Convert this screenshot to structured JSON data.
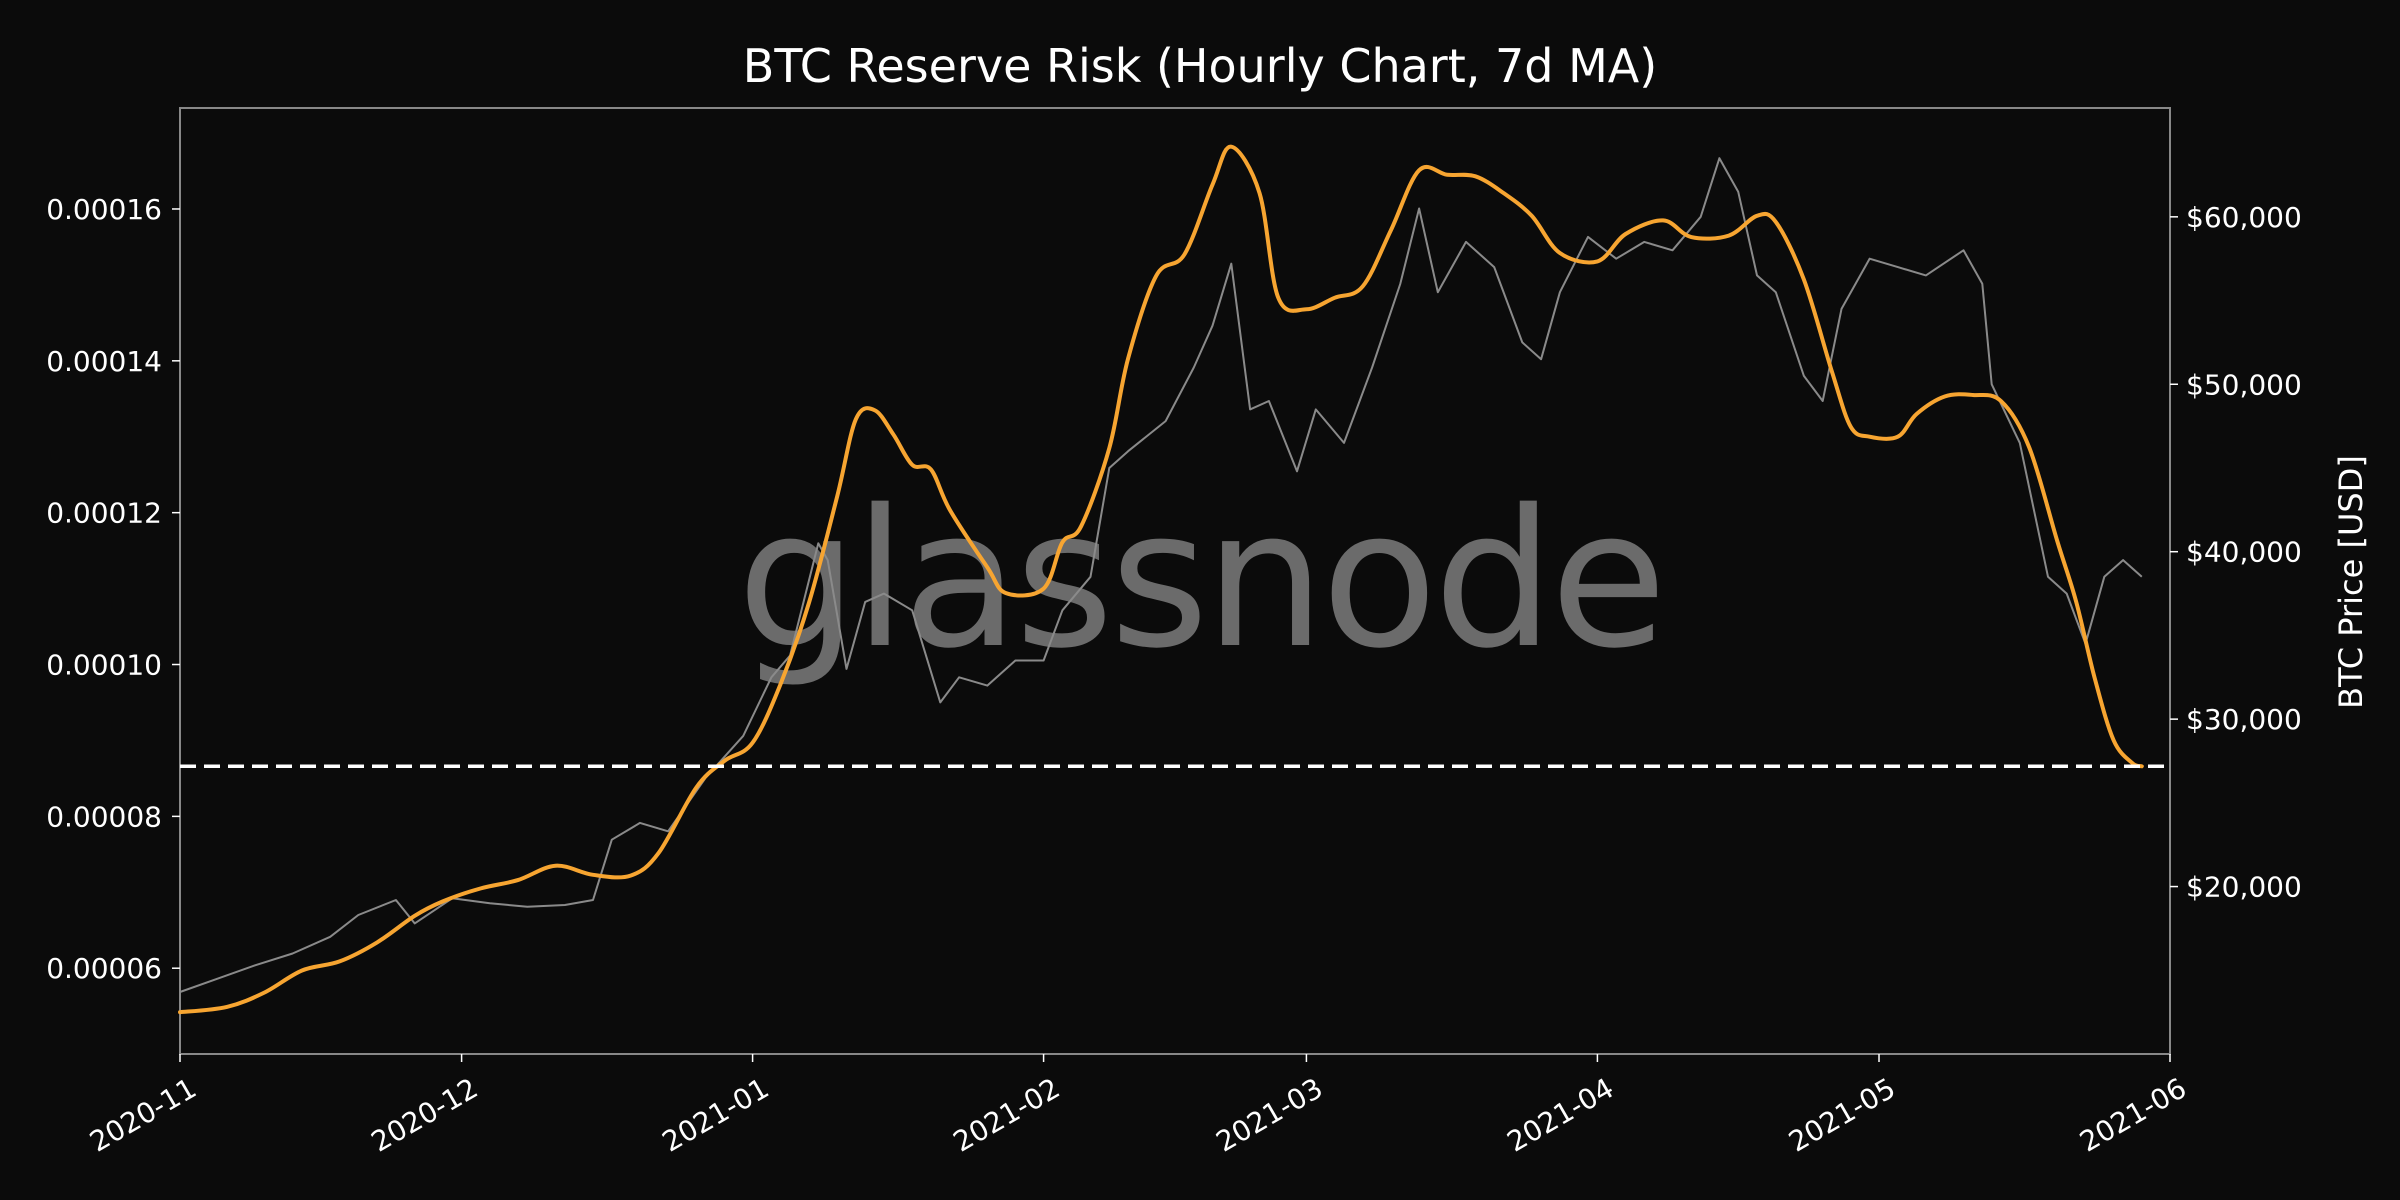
{
  "chart_data": {
    "type": "line",
    "title": "BTC Reserve Risk (Hourly Chart, 7d MA)",
    "watermark": "glassnode",
    "xlabel": "",
    "ylabel_left": "",
    "ylabel_right": "BTC Price [USD]",
    "x_ticks": [
      "2020-11",
      "2020-12",
      "2021-01",
      "2021-02",
      "2021-03",
      "2021-04",
      "2021-05",
      "2021-06"
    ],
    "y_left_ticks": [
      6e-05,
      8e-05,
      0.0001,
      0.00012,
      0.00014,
      0.00016
    ],
    "y_left_tick_labels": [
      "0.00006",
      "0.00008",
      "0.00010",
      "0.00012",
      "0.00014",
      "0.00016"
    ],
    "y_right_ticks": [
      20000,
      30000,
      40000,
      50000,
      60000
    ],
    "y_right_tick_labels": [
      "$20,000",
      "$30,000",
      "$40,000",
      "$50,000",
      "$60,000"
    ],
    "x_range": [
      "2020-11-01",
      "2021-06-01"
    ],
    "y_left_range": [
      4.87e-05,
      0.0001733
    ],
    "y_right_range": [
      10000,
      66500
    ],
    "grid": false,
    "legend": "none",
    "colors": {
      "background": "#0b0b0b",
      "reserve_risk": "#f7a531",
      "price": "#8a8a8a",
      "threshold": "#ffffff",
      "frame": "#888888"
    },
    "threshold": {
      "value": 8.66e-05,
      "style": "dashed"
    },
    "series": [
      {
        "axis": "left",
        "values": [
          [
            "2020-11-01",
            5.42e-05
          ],
          [
            "2020-11-06",
            5.49e-05
          ],
          [
            "2020-11-10",
            5.68e-05
          ],
          [
            "2020-11-14",
            5.97e-05
          ],
          [
            "2020-11-18",
            6.09e-05
          ],
          [
            "2020-11-22",
            6.34e-05
          ],
          [
            "2020-11-26",
            6.69e-05
          ],
          [
            "2020-11-29",
            6.88e-05
          ],
          [
            "2020-12-03",
            7.05e-05
          ],
          [
            "2020-12-07",
            7.16e-05
          ],
          [
            "2020-12-11",
            7.35e-05
          ],
          [
            "2020-12-15",
            7.23e-05
          ],
          [
            "2020-12-19",
            7.22e-05
          ],
          [
            "2020-12-22",
            7.52e-05
          ],
          [
            "2020-12-26",
            8.38e-05
          ],
          [
            "2020-12-29",
            8.73e-05
          ],
          [
            "2021-01-01",
            8.97e-05
          ],
          [
            "2021-01-04",
            9.75e-05
          ],
          [
            "2021-01-07",
            0.0001081
          ],
          [
            "2021-01-10",
            0.0001221
          ],
          [
            "2021-01-12",
            0.0001323
          ],
          [
            "2021-01-14",
            0.0001335
          ],
          [
            "2021-01-16",
            0.0001303
          ],
          [
            "2021-01-18",
            0.0001263
          ],
          [
            "2021-01-20",
            0.0001257
          ],
          [
            "2021-01-22",
            0.0001204
          ],
          [
            "2021-01-26",
            0.0001128
          ],
          [
            "2021-01-28",
            0.0001094
          ],
          [
            "2021-02-01",
            0.00011
          ],
          [
            "2021-02-03",
            0.0001161
          ],
          [
            "2021-02-05",
            0.0001182
          ],
          [
            "2021-02-08",
            0.0001285
          ],
          [
            "2021-02-10",
            0.0001403
          ],
          [
            "2021-02-13",
            0.0001512
          ],
          [
            "2021-02-16",
            0.000154
          ],
          [
            "2021-02-19",
            0.0001632
          ],
          [
            "2021-02-21",
            0.0001682
          ],
          [
            "2021-02-24",
            0.0001621
          ],
          [
            "2021-02-26",
            0.0001483
          ],
          [
            "2021-03-01",
            0.0001468
          ],
          [
            "2021-03-04",
            0.0001483
          ],
          [
            "2021-03-07",
            0.0001498
          ],
          [
            "2021-03-10",
            0.0001572
          ],
          [
            "2021-03-13",
            0.0001651
          ],
          [
            "2021-03-16",
            0.0001645
          ],
          [
            "2021-03-19",
            0.0001643
          ],
          [
            "2021-03-22",
            0.0001621
          ],
          [
            "2021-03-25",
            0.0001591
          ],
          [
            "2021-03-28",
            0.0001542
          ],
          [
            "2021-04-01",
            0.0001531
          ],
          [
            "2021-04-04",
            0.0001567
          ],
          [
            "2021-04-08",
            0.0001585
          ],
          [
            "2021-04-11",
            0.0001563
          ],
          [
            "2021-04-15",
            0.0001565
          ],
          [
            "2021-04-18",
            0.0001591
          ],
          [
            "2021-04-20",
            0.0001583
          ],
          [
            "2021-04-23",
            0.0001507
          ],
          [
            "2021-04-26",
            0.0001385
          ],
          [
            "2021-04-28",
            0.0001313
          ],
          [
            "2021-04-30",
            0.00013
          ],
          [
            "2021-05-03",
            0.00013
          ],
          [
            "2021-05-05",
            0.000133
          ],
          [
            "2021-05-08",
            0.0001353
          ],
          [
            "2021-05-11",
            0.0001355
          ],
          [
            "2021-05-14",
            0.0001347
          ],
          [
            "2021-05-17",
            0.0001286
          ],
          [
            "2021-05-20",
            0.0001162
          ],
          [
            "2021-05-22",
            0.0001083
          ],
          [
            "2021-05-24",
            9.81e-05
          ],
          [
            "2021-05-26",
            9e-05
          ],
          [
            "2021-05-28",
            8.7e-05
          ],
          [
            "2021-05-29",
            8.66e-05
          ]
        ]
      },
      {
        "axis": "right",
        "values": [
          [
            "2020-11-01",
            13700
          ],
          [
            "2020-11-05",
            14500
          ],
          [
            "2020-11-09",
            15300
          ],
          [
            "2020-11-13",
            16000
          ],
          [
            "2020-11-17",
            17000
          ],
          [
            "2020-11-20",
            18300
          ],
          [
            "2020-11-24",
            19200
          ],
          [
            "2020-11-26",
            17800
          ],
          [
            "2020-11-30",
            19300
          ],
          [
            "2020-12-04",
            19000
          ],
          [
            "2020-12-08",
            18800
          ],
          [
            "2020-12-12",
            18900
          ],
          [
            "2020-12-15",
            19200
          ],
          [
            "2020-12-17",
            22800
          ],
          [
            "2020-12-20",
            23800
          ],
          [
            "2020-12-23",
            23300
          ],
          [
            "2020-12-27",
            26500
          ],
          [
            "2020-12-31",
            29000
          ],
          [
            "2021-01-03",
            32500
          ],
          [
            "2021-01-05",
            33800
          ],
          [
            "2021-01-08",
            40500
          ],
          [
            "2021-01-09",
            39500
          ],
          [
            "2021-01-11",
            33000
          ],
          [
            "2021-01-13",
            37000
          ],
          [
            "2021-01-15",
            37500
          ],
          [
            "2021-01-18",
            36500
          ],
          [
            "2021-01-21",
            31000
          ],
          [
            "2021-01-23",
            32500
          ],
          [
            "2021-01-26",
            32000
          ],
          [
            "2021-01-29",
            33500
          ],
          [
            "2021-02-01",
            33500
          ],
          [
            "2021-02-03",
            36500
          ],
          [
            "2021-02-06",
            38500
          ],
          [
            "2021-02-08",
            45000
          ],
          [
            "2021-02-10",
            46000
          ],
          [
            "2021-02-14",
            47800
          ],
          [
            "2021-02-17",
            51000
          ],
          [
            "2021-02-19",
            53500
          ],
          [
            "2021-02-21",
            57200
          ],
          [
            "2021-02-23",
            48500
          ],
          [
            "2021-02-25",
            49000
          ],
          [
            "2021-02-28",
            44800
          ],
          [
            "2021-03-02",
            48500
          ],
          [
            "2021-03-05",
            46500
          ],
          [
            "2021-03-08",
            51000
          ],
          [
            "2021-03-11",
            56000
          ],
          [
            "2021-03-13",
            60500
          ],
          [
            "2021-03-15",
            55500
          ],
          [
            "2021-03-18",
            58500
          ],
          [
            "2021-03-21",
            57000
          ],
          [
            "2021-03-24",
            52500
          ],
          [
            "2021-03-26",
            51500
          ],
          [
            "2021-03-28",
            55500
          ],
          [
            "2021-03-31",
            58800
          ],
          [
            "2021-04-03",
            57500
          ],
          [
            "2021-04-06",
            58500
          ],
          [
            "2021-04-09",
            58000
          ],
          [
            "2021-04-12",
            60000
          ],
          [
            "2021-04-14",
            63500
          ],
          [
            "2021-04-16",
            61500
          ],
          [
            "2021-04-18",
            56500
          ],
          [
            "2021-04-20",
            55500
          ],
          [
            "2021-04-23",
            50500
          ],
          [
            "2021-04-25",
            49000
          ],
          [
            "2021-04-27",
            54500
          ],
          [
            "2021-04-30",
            57500
          ],
          [
            "2021-05-03",
            57000
          ],
          [
            "2021-05-06",
            56500
          ],
          [
            "2021-05-10",
            58000
          ],
          [
            "2021-05-12",
            56000
          ],
          [
            "2021-05-13",
            50000
          ],
          [
            "2021-05-16",
            46500
          ],
          [
            "2021-05-19",
            38500
          ],
          [
            "2021-05-21",
            37500
          ],
          [
            "2021-05-23",
            34500
          ],
          [
            "2021-05-25",
            38500
          ],
          [
            "2021-05-27",
            39500
          ],
          [
            "2021-05-29",
            38500
          ]
        ]
      }
    ]
  }
}
